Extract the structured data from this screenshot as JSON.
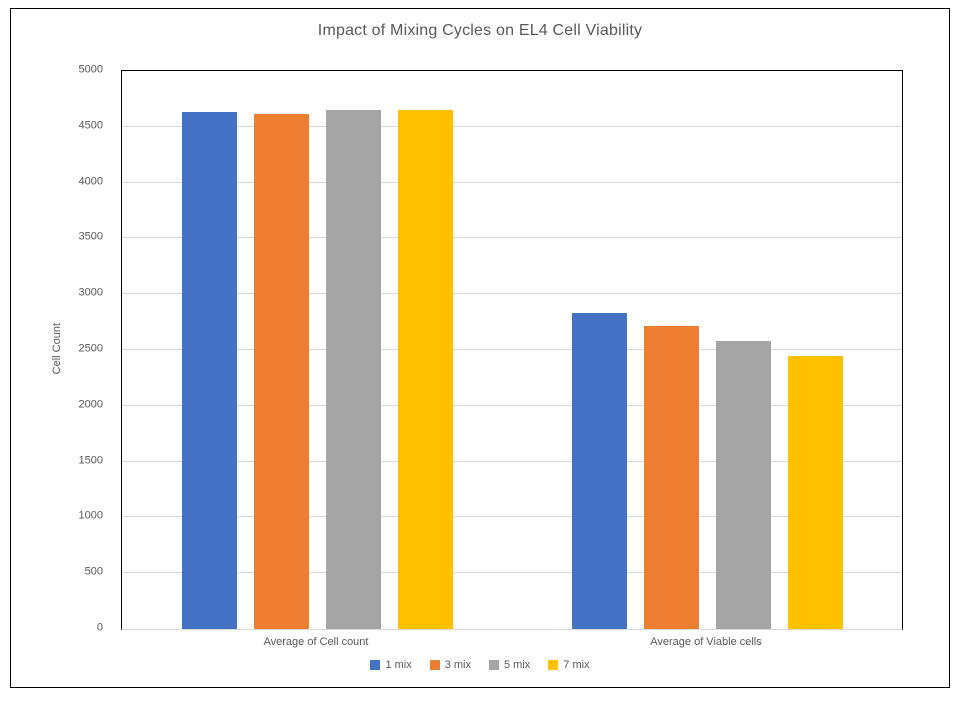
{
  "chart_data": {
    "type": "bar",
    "title": "Impact of Mixing Cycles on EL4 Cell Viability",
    "xlabel": "",
    "ylabel": "Cell Count",
    "categories": [
      "Average of Cell count",
      "Average of Viable cells"
    ],
    "series": [
      {
        "name": "1 mix",
        "color": "#4472C4",
        "values": [
          4630,
          2830
        ]
      },
      {
        "name": "3 mix",
        "color": "#ED7D31",
        "values": [
          4615,
          2715
        ]
      },
      {
        "name": "5 mix",
        "color": "#A5A5A5",
        "values": [
          4655,
          2580
        ]
      },
      {
        "name": "7 mix",
        "color": "#FFC000",
        "values": [
          4650,
          2450
        ]
      }
    ],
    "ylim": [
      0,
      5000
    ],
    "ytick_step": 500,
    "grid": true,
    "legend_position": "bottom",
    "colors": {
      "axis_line": "#000000",
      "gridline": "#d9d9d9",
      "text": "#595959",
      "background": "#ffffff"
    }
  }
}
